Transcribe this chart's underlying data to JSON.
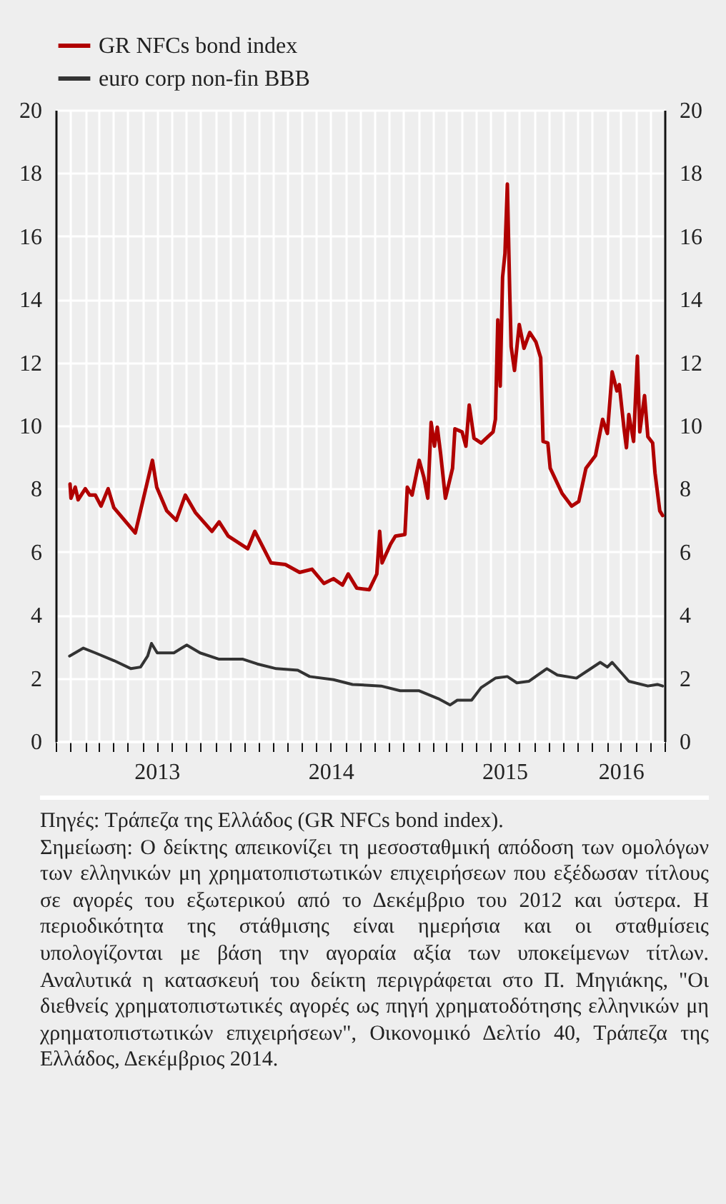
{
  "chart_data": {
    "type": "line",
    "legend": "top left",
    "grid": true,
    "xlim": [
      "2012-12",
      "2016-06"
    ],
    "xticks": [
      {
        "value": "2012-12",
        "label": null
      },
      {
        "value": "2013-01",
        "label": null
      },
      {
        "value": "2013-02",
        "label": null
      },
      {
        "value": "2013-03",
        "label": null
      },
      {
        "value": "2013-04",
        "label": null
      },
      {
        "value": "2013-05",
        "label": null
      },
      {
        "value": "2013-06",
        "label": null
      },
      {
        "value": "2013-07",
        "label": "2013"
      },
      {
        "value": "2013-08",
        "label": null
      },
      {
        "value": "2013-09",
        "label": null
      },
      {
        "value": "2013-10",
        "label": null
      },
      {
        "value": "2013-11",
        "label": null
      },
      {
        "value": "2013-12",
        "label": null
      },
      {
        "value": "2014-01",
        "label": null
      },
      {
        "value": "2014-02",
        "label": null
      },
      {
        "value": "2014-03",
        "label": null
      },
      {
        "value": "2014-04",
        "label": null
      },
      {
        "value": "2014-05",
        "label": null
      },
      {
        "value": "2014-06",
        "label": null
      },
      {
        "value": "2014-07",
        "label": "2014"
      },
      {
        "value": "2014-08",
        "label": null
      },
      {
        "value": "2014-09",
        "label": null
      },
      {
        "value": "2014-10",
        "label": null
      },
      {
        "value": "2014-11",
        "label": null
      },
      {
        "value": "2014-12",
        "label": null
      },
      {
        "value": "2015-01",
        "label": null
      },
      {
        "value": "2015-02",
        "label": null
      },
      {
        "value": "2015-03",
        "label": null
      },
      {
        "value": "2015-04",
        "label": null
      },
      {
        "value": "2015-05",
        "label": null
      },
      {
        "value": "2015-06",
        "label": null
      },
      {
        "value": "2015-07",
        "label": "2015"
      },
      {
        "value": "2015-08",
        "label": null
      },
      {
        "value": "2015-09",
        "label": null
      },
      {
        "value": "2015-10",
        "label": null
      },
      {
        "value": "2015-11",
        "label": null
      },
      {
        "value": "2015-12",
        "label": null
      },
      {
        "value": "2016-01",
        "label": null
      },
      {
        "value": "2016-02",
        "label": null
      },
      {
        "value": "2016-03",
        "label": "2016"
      },
      {
        "value": "2016-04",
        "label": null
      },
      {
        "value": "2016-05",
        "label": null
      },
      {
        "value": "2016-06",
        "label": null
      }
    ],
    "ylim": [
      0,
      20
    ],
    "yticks": [
      0,
      2,
      4,
      6,
      8,
      10,
      12,
      14,
      16,
      18,
      20
    ],
    "y2lim": [
      0,
      20
    ],
    "y2ticks": [
      0,
      2,
      4,
      6,
      8,
      10,
      12,
      14,
      16,
      18,
      20
    ],
    "series": [
      {
        "name": "GR NFCs bond index",
        "color": "#b00000",
        "x": [
          "2012-12-31",
          "2013-01-02",
          "2013-01-11",
          "2013-01-17",
          "2013-02-01",
          "2013-02-10",
          "2013-02-22",
          "2013-03-06",
          "2013-03-21",
          "2013-04-02",
          "2013-05-17",
          "2013-06-22",
          "2013-07-01",
          "2013-07-22",
          "2013-08-11",
          "2013-08-30",
          "2013-09-20",
          "2013-10-25",
          "2013-11-09",
          "2013-11-28",
          "2014-01-08",
          "2014-01-23",
          "2014-02-26",
          "2014-03-28",
          "2014-04-27",
          "2014-05-23",
          "2014-06-17",
          "2014-07-07",
          "2014-07-26",
          "2014-08-07",
          "2014-08-25",
          "2014-09-20",
          "2014-10-06",
          "2014-10-12",
          "2014-10-17",
          "2014-11-04",
          "2014-11-14",
          "2014-12-04",
          "2014-12-09",
          "2014-12-19",
          "2015-01-03",
          "2015-01-13",
          "2015-01-21",
          "2015-01-28",
          "2015-02-04",
          "2015-02-10",
          "2015-02-17",
          "2015-02-27",
          "2015-03-14",
          "2015-03-19",
          "2015-04-03",
          "2015-04-11",
          "2015-04-18",
          "2015-04-28",
          "2015-05-13",
          "2015-06-07",
          "2015-06-12",
          "2015-06-17",
          "2015-06-22",
          "2015-06-27",
          "2015-07-02",
          "2015-07-07",
          "2015-07-12",
          "2015-07-15",
          "2015-07-22",
          "2015-08-01",
          "2015-08-11",
          "2015-08-23",
          "2015-09-05",
          "2015-09-15",
          "2015-09-20",
          "2015-09-30",
          "2015-10-05",
          "2015-10-30",
          "2015-11-19",
          "2015-12-04",
          "2015-12-19",
          "2016-01-08",
          "2016-01-23",
          "2016-02-02",
          "2016-02-12",
          "2016-02-22",
          "2016-02-27",
          "2016-03-08",
          "2016-03-13",
          "2016-03-18",
          "2016-03-28",
          "2016-04-05",
          "2016-04-10",
          "2016-04-20",
          "2016-04-27",
          "2016-05-07",
          "2016-05-12",
          "2016-05-22",
          "2016-05-28"
        ],
        "values": [
          8.15,
          7.7,
          8.05,
          7.65,
          8.0,
          7.8,
          7.8,
          7.45,
          8.0,
          7.4,
          6.6,
          8.9,
          8.05,
          7.3,
          7.0,
          7.8,
          7.25,
          6.65,
          6.95,
          6.5,
          6.1,
          6.65,
          5.65,
          5.6,
          5.35,
          5.45,
          5.0,
          5.15,
          4.95,
          5.3,
          4.85,
          4.8,
          5.3,
          6.65,
          5.65,
          6.25,
          6.5,
          6.55,
          8.05,
          7.8,
          8.9,
          8.35,
          7.7,
          10.1,
          9.35,
          9.95,
          9.1,
          7.7,
          8.65,
          9.9,
          9.8,
          9.35,
          10.65,
          9.6,
          9.45,
          9.8,
          10.2,
          13.35,
          11.25,
          14.7,
          15.45,
          17.65,
          14.25,
          12.5,
          11.75,
          13.2,
          12.45,
          12.95,
          12.65,
          12.15,
          9.5,
          9.45,
          8.65,
          7.85,
          7.45,
          7.6,
          8.65,
          9.05,
          10.2,
          9.75,
          11.7,
          11.1,
          11.3,
          9.9,
          9.3,
          10.35,
          9.5,
          12.2,
          9.8,
          10.95,
          9.65,
          9.45,
          8.5,
          7.3,
          7.15
        ]
      },
      {
        "name": "euro corp non-fin BBB",
        "color": "#333333",
        "x": [
          "2012-12-30",
          "2013-01-28",
          "2013-02-22",
          "2013-04-03",
          "2013-05-08",
          "2013-05-28",
          "2013-06-12",
          "2013-06-20",
          "2013-07-02",
          "2013-08-06",
          "2013-09-02",
          "2013-09-30",
          "2013-11-09",
          "2013-12-29",
          "2014-01-28",
          "2014-03-09",
          "2014-04-23",
          "2014-05-18",
          "2014-07-07",
          "2014-08-16",
          "2014-10-15",
          "2014-11-24",
          "2015-01-03",
          "2015-02-12",
          "2015-03-09",
          "2015-03-24",
          "2015-04-23",
          "2015-05-13",
          "2015-06-12",
          "2015-07-07",
          "2015-07-27",
          "2015-08-21",
          "2015-09-28",
          "2015-10-20",
          "2015-11-29",
          "2015-12-19",
          "2016-01-18",
          "2016-02-02",
          "2016-02-12",
          "2016-03-18",
          "2016-04-27",
          "2016-05-17",
          "2016-05-28"
        ],
        "values": [
          2.7,
          2.95,
          2.8,
          2.55,
          2.3,
          2.35,
          2.7,
          3.1,
          2.8,
          2.8,
          3.05,
          2.8,
          2.6,
          2.6,
          2.45,
          2.3,
          2.25,
          2.05,
          1.95,
          1.8,
          1.75,
          1.6,
          1.6,
          1.35,
          1.15,
          1.3,
          1.3,
          1.7,
          2.0,
          2.05,
          1.85,
          1.9,
          2.3,
          2.1,
          2.0,
          2.2,
          2.5,
          2.35,
          2.5,
          1.9,
          1.75,
          1.8,
          1.75
        ]
      }
    ],
    "annotations": [
      "Πηγές: Τράπεζα της Ελλάδος (GR NFCs bond index).",
      "Σημείωση: Ο δείκτης απεικονίζει τη μεσοσταθμική απόδοση των ομολόγων των ελληνικών μη χρηματοπιστωτικών επιχειρήσεων που εξέδωσαν τίτλους σε αγορές του εξωτερικού από το Δεκέμβριο του 2012 και ύστερα. Η περιοδικότητα της στάθμισης είναι ημερήσια και οι σταθμίσεις υπολογίζονται με βάση την αγοραία αξία των υποκείμενων τίτλων. Αναλυτικά η κατασκευή του δείκτη περιγράφεται στο Π. Μηγιάκης, \"Οι διεθνείς χρηματοπιστωτικές αγορές ως πηγή χρηματοδότησης ελληνικών μη χρηματοπιστωτικών επιχειρήσεων\", Οικονομικό Δελτίο 40, Τράπεζα της Ελλάδος, Δεκέμβριος 2014."
    ]
  }
}
